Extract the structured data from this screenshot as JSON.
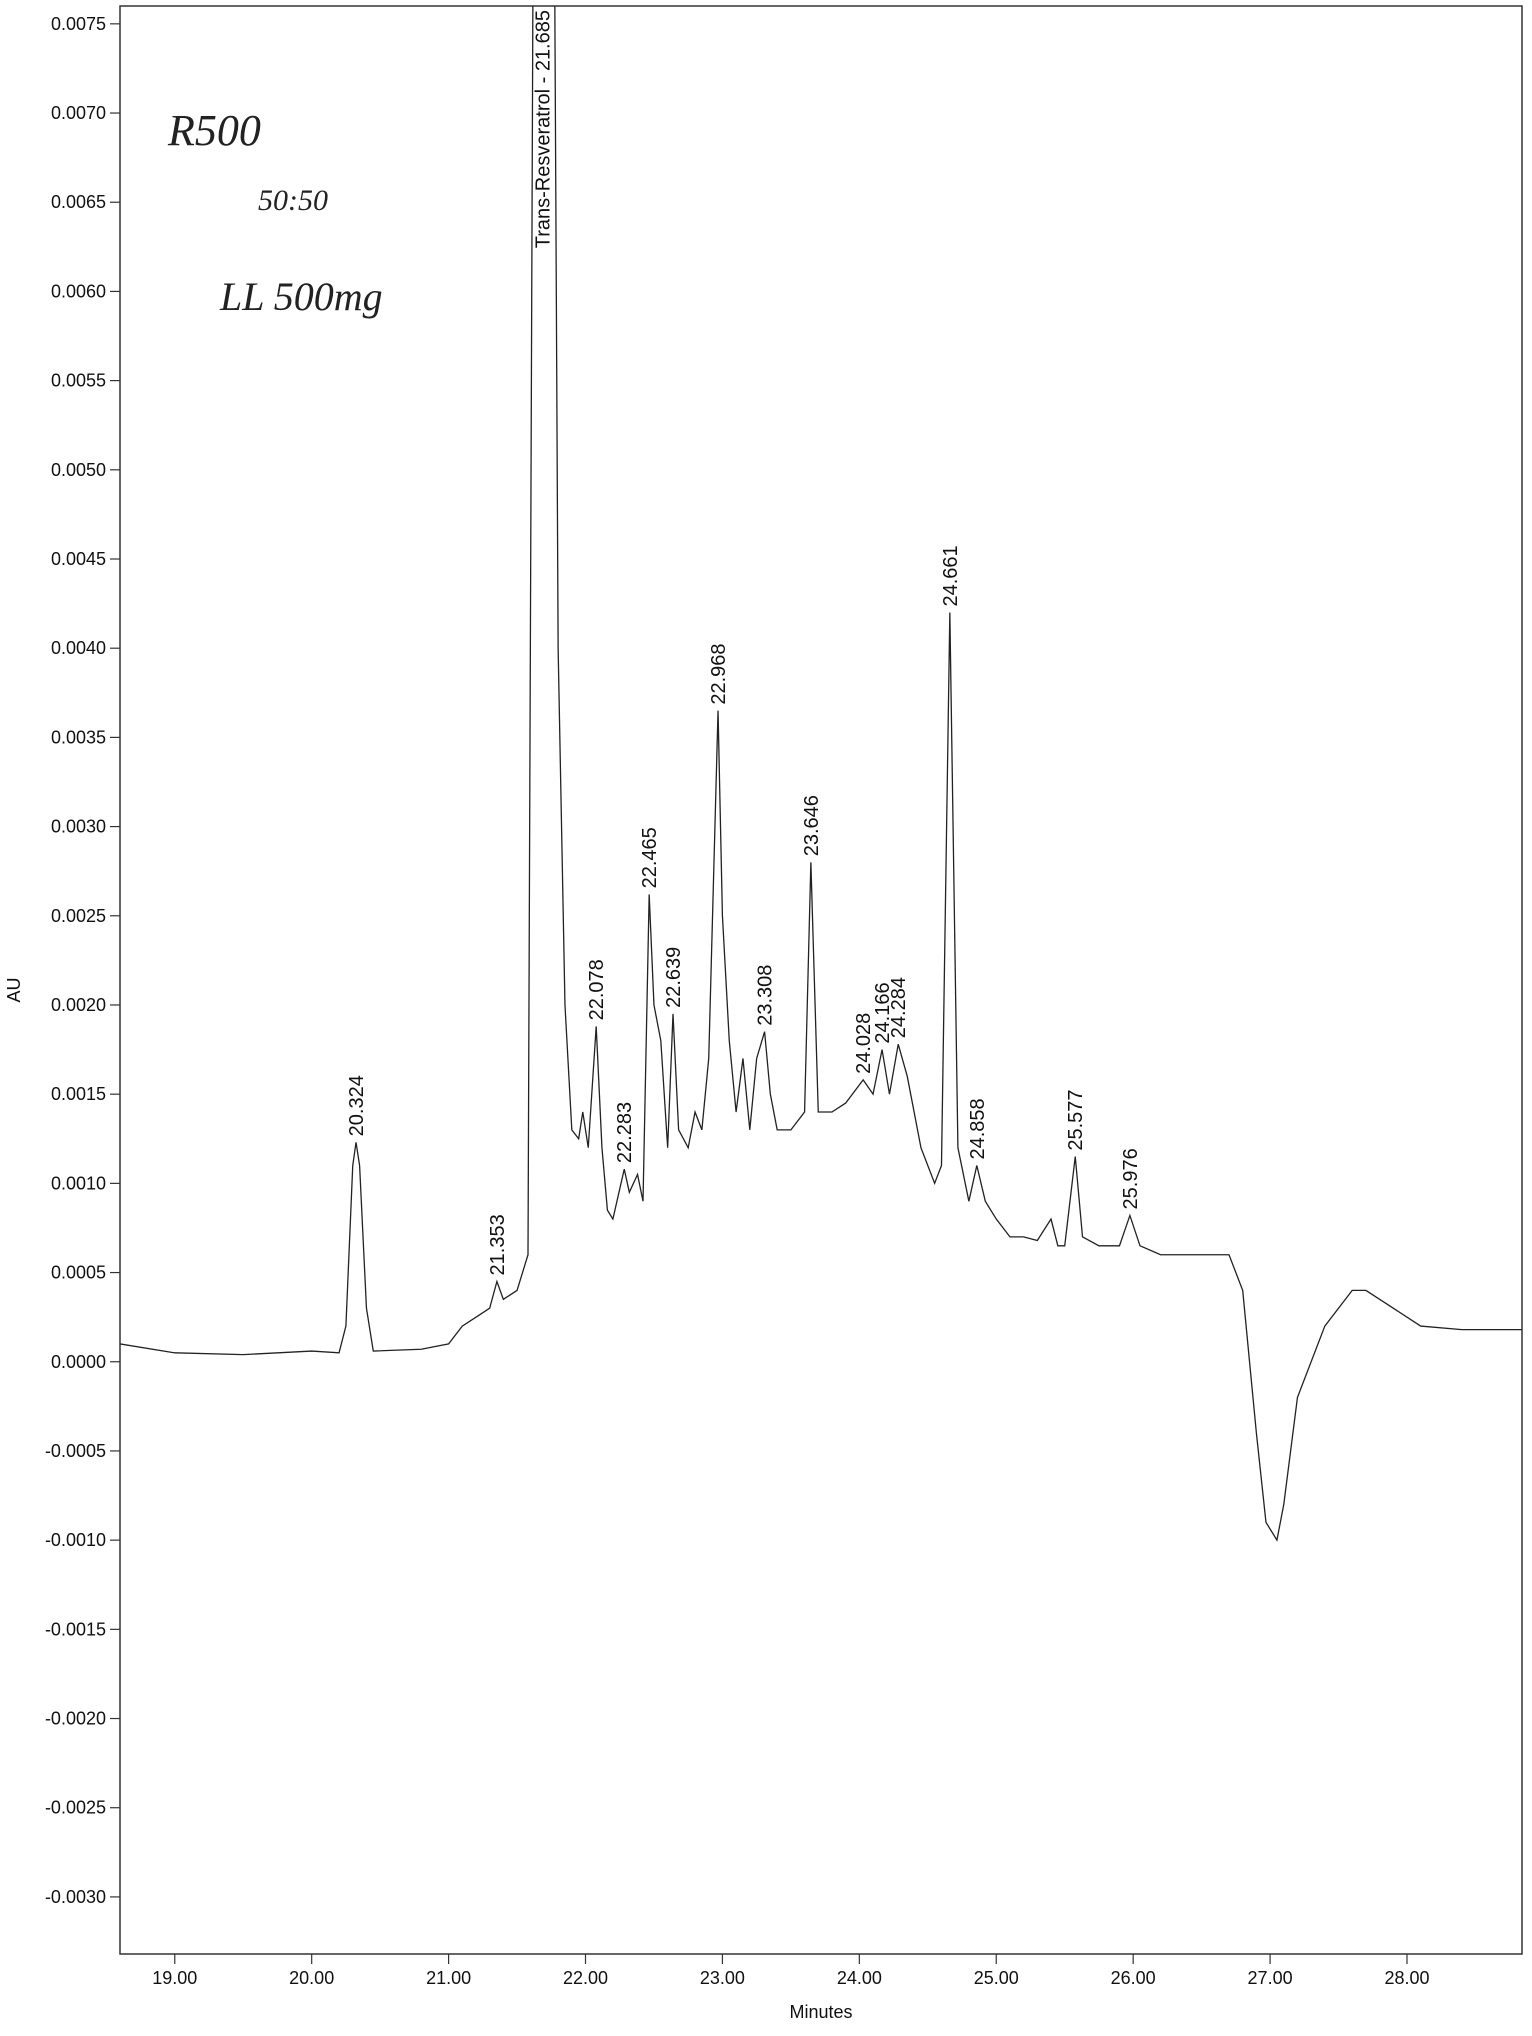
{
  "chart_data": {
    "type": "line",
    "xlabel": "Minutes",
    "ylabel": "AU",
    "annotations": [
      "R500",
      "50:50",
      "LL 500mg"
    ],
    "xlim": [
      18.6,
      28.84
    ],
    "ylim": [
      -0.00332,
      0.0076
    ],
    "xticks": [
      {
        "value": 19,
        "label": "19.00"
      },
      {
        "value": 20,
        "label": "20.00"
      },
      {
        "value": 21,
        "label": "21.00"
      },
      {
        "value": 22,
        "label": "22.00"
      },
      {
        "value": 23,
        "label": "23.00"
      },
      {
        "value": 24,
        "label": "24.00"
      },
      {
        "value": 25,
        "label": "25.00"
      },
      {
        "value": 26,
        "label": "26.00"
      },
      {
        "value": 27,
        "label": "27.00"
      },
      {
        "value": 28,
        "label": "28.00"
      }
    ],
    "yticks": [
      {
        "value": -0.003,
        "label": "-0.0030"
      },
      {
        "value": -0.0025,
        "label": "-0.0025"
      },
      {
        "value": -0.002,
        "label": "-0.0020"
      },
      {
        "value": -0.0015,
        "label": "-0.0015"
      },
      {
        "value": -0.001,
        "label": "-0.0010"
      },
      {
        "value": -0.0005,
        "label": "-0.0005"
      },
      {
        "value": 0,
        "label": "0.0000"
      },
      {
        "value": 0.0005,
        "label": "0.0005"
      },
      {
        "value": 0.001,
        "label": "0.0010"
      },
      {
        "value": 0.0015,
        "label": "0.0015"
      },
      {
        "value": 0.002,
        "label": "0.0020"
      },
      {
        "value": 0.0025,
        "label": "0.0025"
      },
      {
        "value": 0.003,
        "label": "0.0030"
      },
      {
        "value": 0.0035,
        "label": "0.0035"
      },
      {
        "value": 0.004,
        "label": "0.0040"
      },
      {
        "value": 0.0045,
        "label": "0.0045"
      },
      {
        "value": 0.005,
        "label": "0.0050"
      },
      {
        "value": 0.0055,
        "label": "0.0055"
      },
      {
        "value": 0.006,
        "label": "0.0060"
      },
      {
        "value": 0.0065,
        "label": "0.0065"
      },
      {
        "value": 0.007,
        "label": "0.0070"
      },
      {
        "value": 0.0075,
        "label": "0.0075"
      }
    ],
    "x": [
      18.6,
      19.0,
      19.5,
      20.0,
      20.2,
      20.25,
      20.3,
      20.324,
      20.35,
      20.4,
      20.45,
      20.8,
      21.0,
      21.1,
      21.2,
      21.3,
      21.353,
      21.4,
      21.5,
      21.58,
      21.62,
      21.77,
      21.8,
      21.85,
      21.9,
      21.95,
      21.98,
      22.02,
      22.078,
      22.12,
      22.16,
      22.2,
      22.283,
      22.32,
      22.38,
      22.42,
      22.465,
      22.5,
      22.55,
      22.6,
      22.639,
      22.68,
      22.75,
      22.8,
      22.85,
      22.9,
      22.968,
      23.0,
      23.05,
      23.1,
      23.15,
      23.2,
      23.25,
      23.308,
      23.35,
      23.4,
      23.5,
      23.6,
      23.646,
      23.7,
      23.8,
      23.9,
      24.028,
      24.1,
      24.166,
      24.22,
      24.284,
      24.35,
      24.45,
      24.55,
      24.6,
      24.661,
      24.72,
      24.8,
      24.858,
      24.92,
      25.0,
      25.1,
      25.2,
      25.3,
      25.4,
      25.45,
      25.5,
      25.577,
      25.63,
      25.75,
      25.9,
      25.976,
      26.05,
      26.2,
      26.5,
      26.7,
      26.8,
      26.9,
      26.97,
      27.05,
      27.1,
      27.2,
      27.4,
      27.6,
      27.7,
      27.9,
      28.1,
      28.4,
      28.84
    ],
    "series": [
      {
        "color": "#222222",
        "values": [
          0.0001,
          5e-05,
          4e-05,
          6e-05,
          5e-05,
          0.0002,
          0.0011,
          0.00123,
          0.0011,
          0.0003,
          6e-05,
          7e-05,
          0.0001,
          0.0002,
          0.00025,
          0.0003,
          0.00045,
          0.00035,
          0.0004,
          0.0006,
          0.0085,
          0.0085,
          0.004,
          0.002,
          0.0013,
          0.00125,
          0.0014,
          0.0012,
          0.00188,
          0.0012,
          0.00085,
          0.0008,
          0.00108,
          0.00095,
          0.00105,
          0.0009,
          0.00262,
          0.002,
          0.0018,
          0.0012,
          0.00195,
          0.0013,
          0.0012,
          0.0014,
          0.0013,
          0.0017,
          0.00365,
          0.0025,
          0.0018,
          0.0014,
          0.0017,
          0.0013,
          0.0017,
          0.00185,
          0.0015,
          0.0013,
          0.0013,
          0.0014,
          0.0028,
          0.0014,
          0.0014,
          0.00145,
          0.00158,
          0.0015,
          0.00175,
          0.0015,
          0.00178,
          0.0016,
          0.0012,
          0.001,
          0.0011,
          0.0042,
          0.0012,
          0.0009,
          0.0011,
          0.0009,
          0.0008,
          0.0007,
          0.0007,
          0.00068,
          0.0008,
          0.00065,
          0.00065,
          0.00115,
          0.0007,
          0.00065,
          0.00065,
          0.00082,
          0.00065,
          0.0006,
          0.0006,
          0.0006,
          0.0004,
          -0.0004,
          -0.0009,
          -0.001,
          -0.0008,
          -0.0002,
          0.0002,
          0.0004,
          0.0004,
          0.0003,
          0.0002,
          0.00018,
          0.00018
        ]
      }
    ],
    "peaks": [
      {
        "x": 20.324,
        "y": 0.00123
      },
      {
        "x": 21.353,
        "y": 0.00045
      },
      {
        "x": 21.685,
        "y": 0.0085,
        "label": "Trans-Resveratrol - 21.685"
      },
      {
        "x": 22.078,
        "y": 0.00188
      },
      {
        "x": 22.283,
        "y": 0.00108
      },
      {
        "x": 22.465,
        "y": 0.00262
      },
      {
        "x": 22.639,
        "y": 0.00195
      },
      {
        "x": 22.968,
        "y": 0.00365
      },
      {
        "x": 23.308,
        "y": 0.00185
      },
      {
        "x": 23.646,
        "y": 0.0028
      },
      {
        "x": 24.028,
        "y": 0.00158
      },
      {
        "x": 24.166,
        "y": 0.00175
      },
      {
        "x": 24.284,
        "y": 0.00178
      },
      {
        "x": 24.661,
        "y": 0.0042
      },
      {
        "x": 24.858,
        "y": 0.0011
      },
      {
        "x": 25.577,
        "y": 0.00115
      },
      {
        "x": 25.976,
        "y": 0.00082
      }
    ]
  }
}
